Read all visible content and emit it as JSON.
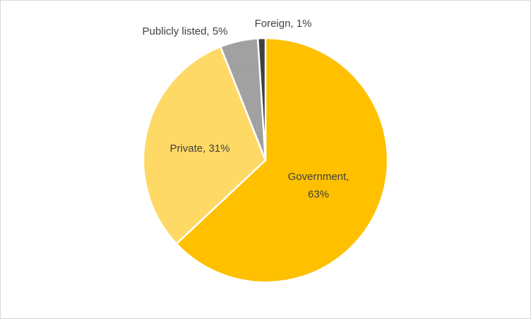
{
  "chart_data": {
    "type": "pie",
    "title": "",
    "slices": [
      {
        "category": "Government",
        "value": 63,
        "color": "#FFC000",
        "label_lines": [
          "Government,",
          "63%"
        ]
      },
      {
        "category": "Private",
        "value": 31,
        "color": "#FFD966",
        "label_lines": [
          "Private, 31%"
        ]
      },
      {
        "category": "Publicly listed",
        "value": 5,
        "color": "#A6A6A6",
        "label_lines": [
          "Publicly listed, 5%"
        ]
      },
      {
        "category": "Foreign",
        "value": 1,
        "color": "#404040",
        "label_lines": [
          "Foreign, 1%"
        ]
      }
    ],
    "start_angle_deg": 0,
    "direction": "clockwise",
    "legend": "none",
    "border_color": "#FFFFFF"
  }
}
